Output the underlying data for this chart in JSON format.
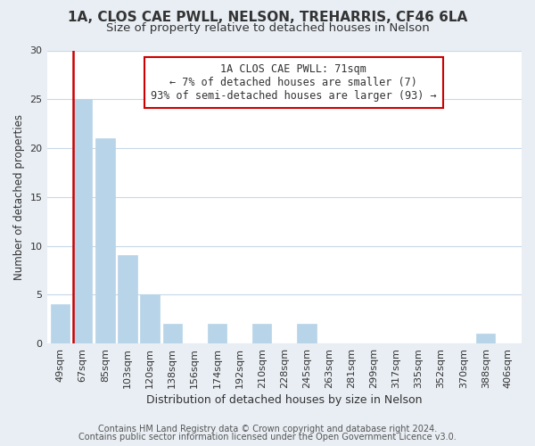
{
  "title": "1A, CLOS CAE PWLL, NELSON, TREHARRIS, CF46 6LA",
  "subtitle": "Size of property relative to detached houses in Nelson",
  "xlabel": "Distribution of detached houses by size in Nelson",
  "ylabel": "Number of detached properties",
  "categories": [
    "49sqm",
    "67sqm",
    "85sqm",
    "103sqm",
    "120sqm",
    "138sqm",
    "156sqm",
    "174sqm",
    "192sqm",
    "210sqm",
    "228sqm",
    "245sqm",
    "263sqm",
    "281sqm",
    "299sqm",
    "317sqm",
    "335sqm",
    "352sqm",
    "370sqm",
    "388sqm",
    "406sqm"
  ],
  "values": [
    4,
    25,
    21,
    9,
    5,
    2,
    0,
    2,
    0,
    2,
    0,
    2,
    0,
    0,
    0,
    0,
    0,
    0,
    0,
    1,
    0
  ],
  "bar_color": "#b8d4e8",
  "highlight_bar_index": 1,
  "highlight_line_color": "#cc0000",
  "ylim": [
    0,
    30
  ],
  "yticks": [
    0,
    5,
    10,
    15,
    20,
    25,
    30
  ],
  "annotation_title": "1A CLOS CAE PWLL: 71sqm",
  "annotation_line1": "← 7% of detached houses are smaller (7)",
  "annotation_line2": "93% of semi-detached houses are larger (93) →",
  "annotation_box_color": "#ffffff",
  "annotation_box_edgecolor": "#cc0000",
  "footer_line1": "Contains HM Land Registry data © Crown copyright and database right 2024.",
  "footer_line2": "Contains public sector information licensed under the Open Government Licence v3.0.",
  "background_color": "#e8eef4",
  "plot_background_color": "#ffffff",
  "grid_color": "#c8d8e8",
  "title_fontsize": 11,
  "subtitle_fontsize": 9.5,
  "xlabel_fontsize": 9,
  "ylabel_fontsize": 8.5,
  "tick_fontsize": 8,
  "annotation_fontsize": 8.5,
  "footer_fontsize": 7
}
